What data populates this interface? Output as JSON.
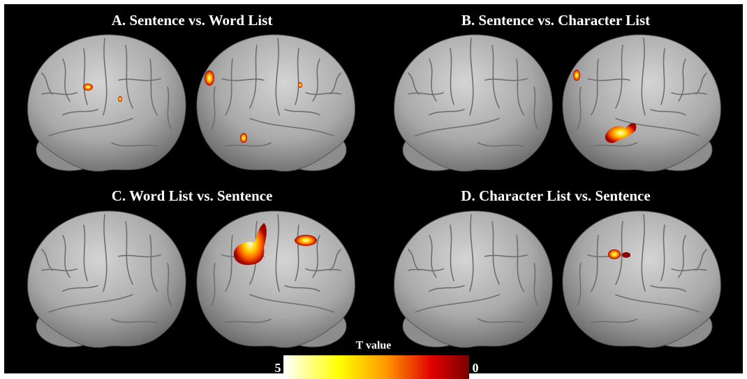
{
  "panels": [
    {
      "title": "A. Sentence vs. Word List"
    },
    {
      "title": "B. Sentence vs. Character List"
    },
    {
      "title": "C. Word List vs. Sentence"
    },
    {
      "title": "D. Character List vs. Sentence"
    }
  ],
  "colorbar": {
    "title": "T value",
    "ticks": [
      5,
      0
    ]
  }
}
